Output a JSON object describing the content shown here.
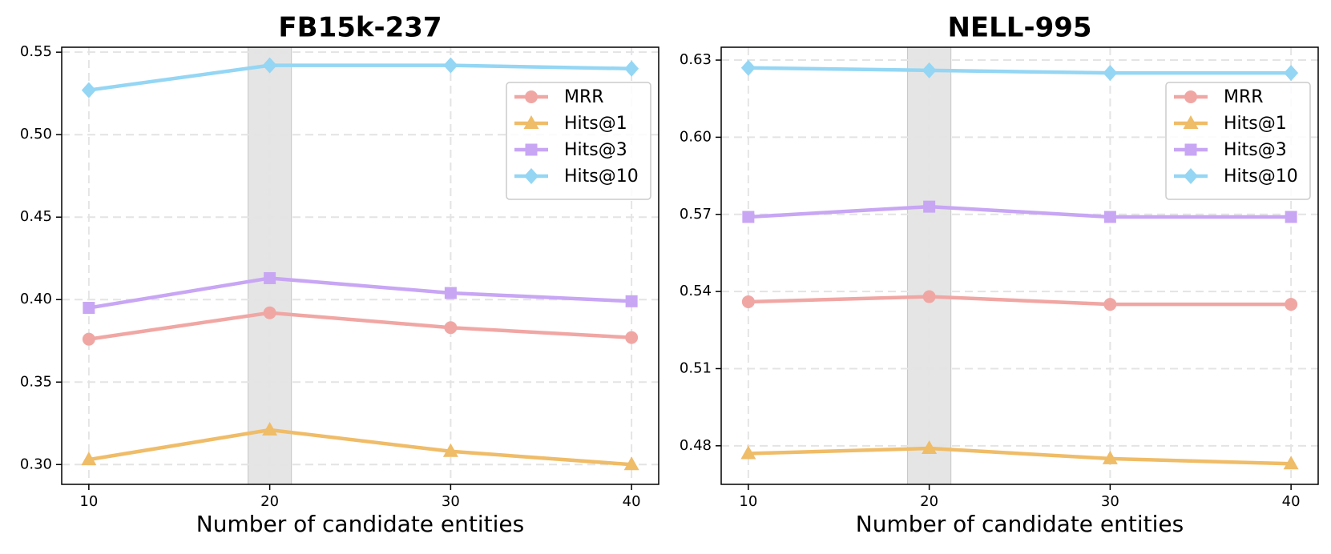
{
  "chart_data": [
    {
      "type": "line",
      "title": "FB15k-237",
      "xlabel": "Number of candidate entities",
      "x": [
        10,
        20,
        30,
        40
      ],
      "xlim": [
        8.5,
        41.5
      ],
      "xticks": [
        10,
        20,
        30,
        40
      ],
      "ylim": [
        0.288,
        0.553
      ],
      "yticks": [
        {
          "value": 0.3,
          "label": "0.30"
        },
        0.35,
        {
          "value": 0.4,
          "label": "0.40"
        },
        0.45,
        {
          "value": 0.5,
          "label": "0.50"
        },
        0.55
      ],
      "grid": true,
      "legend": "upper right",
      "highlight": [
        18.8,
        21.2
      ],
      "series": [
        {
          "name": "MRR",
          "color": "#f0a7a4",
          "marker": "circle",
          "values": [
            0.376,
            0.392,
            0.383,
            0.377
          ]
        },
        {
          "name": "Hits@1",
          "color": "#efbc68",
          "marker": "triangle",
          "values": [
            0.303,
            0.321,
            0.308,
            0.3
          ]
        },
        {
          "name": "Hits@3",
          "color": "#c8a6f4",
          "marker": "square",
          "values": [
            0.395,
            0.413,
            0.404,
            0.399
          ]
        },
        {
          "name": "Hits@10",
          "color": "#94d6f4",
          "marker": "diamond",
          "values": [
            0.527,
            0.542,
            0.542,
            0.54
          ]
        }
      ]
    },
    {
      "type": "line",
      "title": "NELL-995",
      "xlabel": "Number of candidate entities",
      "x": [
        10,
        20,
        30,
        40
      ],
      "xlim": [
        8.5,
        41.5
      ],
      "xticks": [
        10,
        20,
        30,
        40
      ],
      "ylim": [
        0.465,
        0.635
      ],
      "yticks": [
        0.48,
        0.51,
        0.54,
        0.57,
        {
          "value": 0.6,
          "label": "0.60"
        },
        0.63
      ],
      "grid": true,
      "legend": "upper right",
      "highlight": [
        18.8,
        21.2
      ],
      "series": [
        {
          "name": "MRR",
          "color": "#f0a7a4",
          "marker": "circle",
          "values": [
            0.536,
            0.538,
            0.535,
            0.535
          ]
        },
        {
          "name": "Hits@1",
          "color": "#efbc68",
          "marker": "triangle",
          "values": [
            0.477,
            0.479,
            0.475,
            0.473
          ]
        },
        {
          "name": "Hits@3",
          "color": "#c8a6f4",
          "marker": "square",
          "values": [
            0.569,
            0.573,
            0.569,
            0.569
          ]
        },
        {
          "name": "Hits@10",
          "color": "#94d6f4",
          "marker": "diamond",
          "values": [
            0.627,
            0.626,
            0.625,
            0.625
          ]
        }
      ]
    }
  ]
}
